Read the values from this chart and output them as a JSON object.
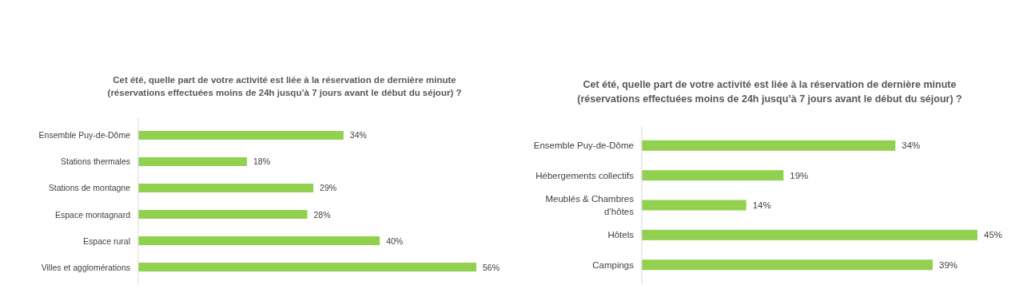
{
  "chart_data": [
    {
      "type": "bar",
      "orientation": "horizontal",
      "title": "Cet été, quelle part de votre activité est liée à la réservation de dernière minute",
      "subtitle": "(réservations effectuées moins de 24h jusqu’à 7 jours avant le début du séjour) ?",
      "categories": [
        "Ensemble Puy-de-Dôme",
        "Stations thermales",
        "Stations de montagne",
        "Espace montagnard",
        "Espace rural",
        "Villes et agglomérations"
      ],
      "values": [
        34,
        18,
        29,
        28,
        40,
        56
      ],
      "value_labels": [
        "34%",
        "18%",
        "29%",
        "28%",
        "40%",
        "56%"
      ],
      "color": "#92d050"
    },
    {
      "type": "bar",
      "orientation": "horizontal",
      "title": "Cet été, quelle part de votre activité est liée à la réservation de dernière minute",
      "subtitle": "(réservations effectuées moins de 24h jusqu’à 7 jours avant le début du séjour) ?",
      "categories": [
        "Ensemble Puy-de-Dôme",
        "Hébergements collectifs",
        "Meublés & Chambres d’hôtes",
        "Hôtels",
        "Campings"
      ],
      "values": [
        34,
        19,
        14,
        45,
        39
      ],
      "value_labels": [
        "34%",
        "19%",
        "14%",
        "45%",
        "39%"
      ],
      "color": "#92d050"
    }
  ]
}
